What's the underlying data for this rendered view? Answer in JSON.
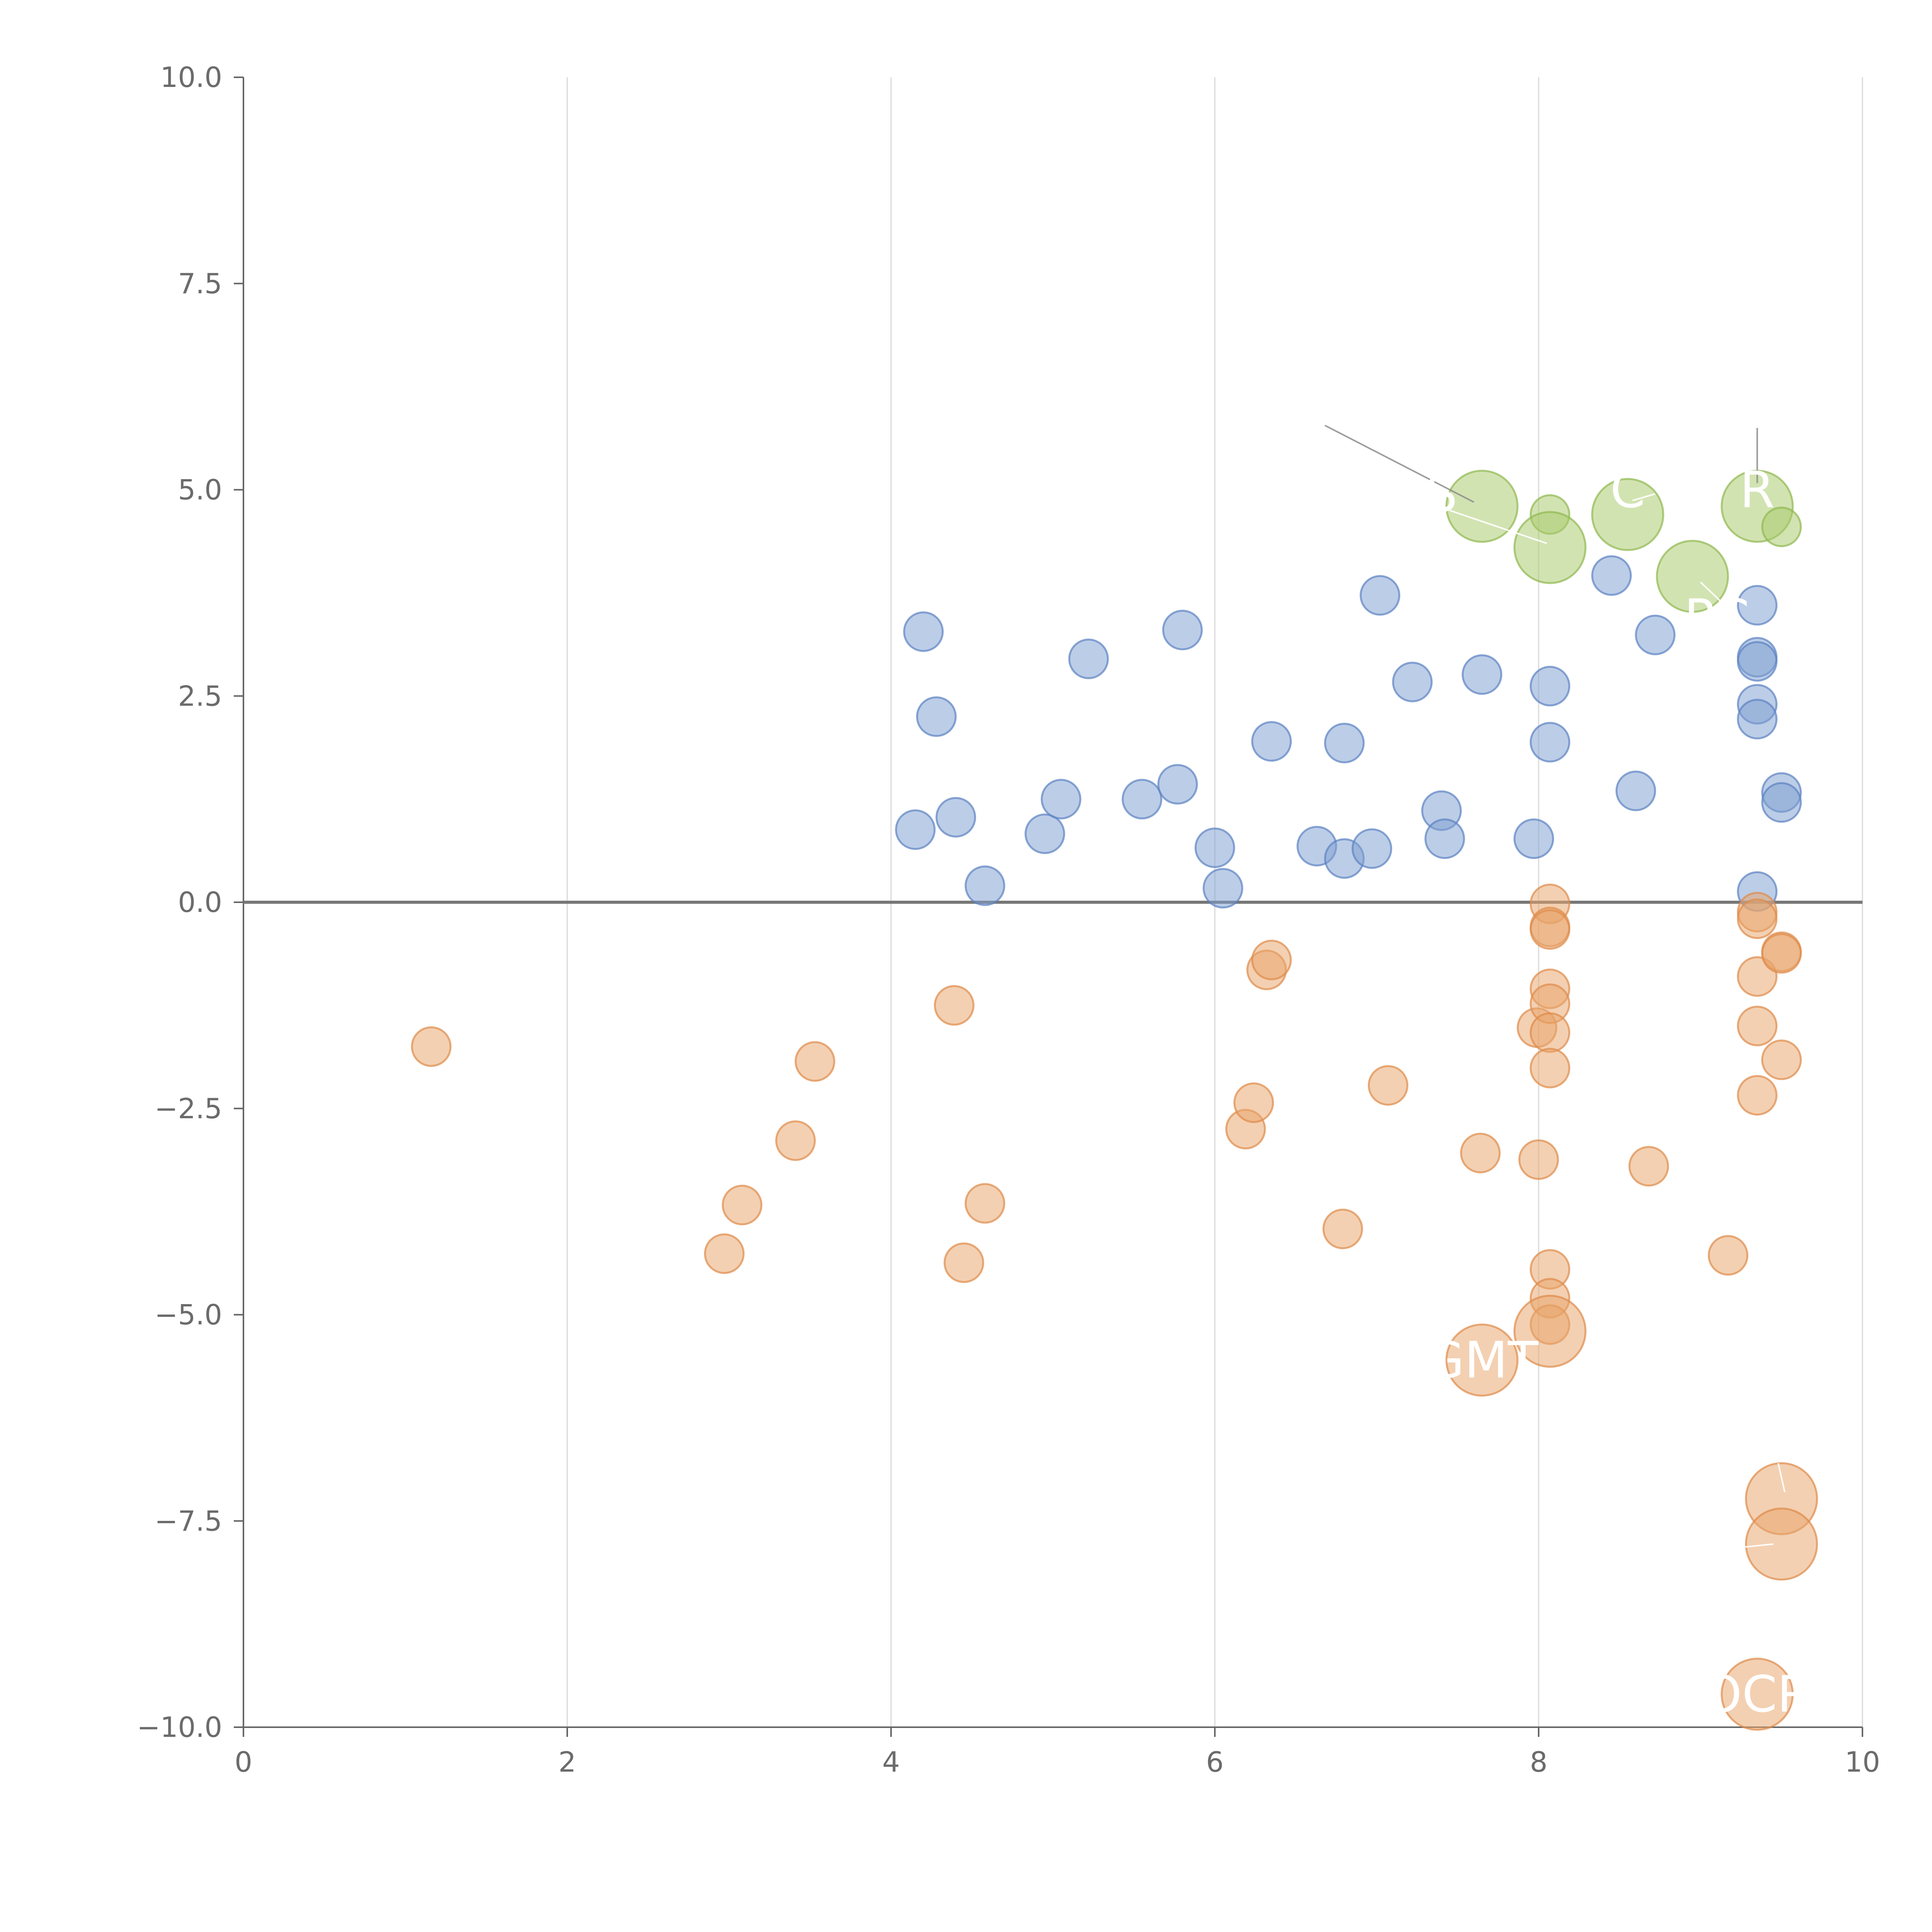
{
  "chart_data": {
    "type": "scatter",
    "title": "",
    "xlabel": "",
    "ylabel": "",
    "xlim": [
      0,
      10
    ],
    "ylim": [
      -10,
      10
    ],
    "x_ticks": [
      0,
      2,
      4,
      6,
      8,
      10
    ],
    "y_ticks": [
      10,
      7.5,
      5,
      2.5,
      0,
      -2.5,
      -5,
      -7.5,
      -10
    ],
    "x_tick_labels": [
      "0",
      "2",
      "4",
      "6",
      "8",
      "10"
    ],
    "y_tick_labels": [
      "10.0",
      "7.5",
      "5.0",
      "2.5",
      "0.0",
      "−2.5",
      "−5.0",
      "−7.5",
      "−10.0"
    ],
    "vertical_grid": true,
    "horizontal_grid": false,
    "reference_line_y": 0,
    "colors": {
      "green_fill": "#a9c96b",
      "green_stroke": "#8fb84e",
      "blue_fill": "#7f9fd1",
      "blue_stroke": "#5b82c2",
      "orange_fill": "#e8a46c",
      "orange_stroke": "#de8a48",
      "leader_dark": "#8c8c8c",
      "leader_light": "#ffffff"
    },
    "series": [
      {
        "name": "green",
        "color_key": "green",
        "points": [
          {
            "x": 7.65,
            "y": 4.8,
            "size": 3
          },
          {
            "x": 8.07,
            "y": 4.7,
            "size": 1
          },
          {
            "x": 8.07,
            "y": 4.3,
            "size": 3
          },
          {
            "x": 8.55,
            "y": 4.7,
            "size": 3
          },
          {
            "x": 8.95,
            "y": 3.95,
            "size": 3
          },
          {
            "x": 9.35,
            "y": 4.8,
            "size": 3
          },
          {
            "x": 9.5,
            "y": 4.55,
            "size": 1
          }
        ]
      },
      {
        "name": "blue",
        "color_key": "blue",
        "points": [
          {
            "x": 4.2,
            "y": 3.28,
            "size": 1
          },
          {
            "x": 4.28,
            "y": 2.25,
            "size": 1
          },
          {
            "x": 4.15,
            "y": 0.88,
            "size": 1
          },
          {
            "x": 4.4,
            "y": 1.03,
            "size": 1
          },
          {
            "x": 4.58,
            "y": 0.2,
            "size": 1
          },
          {
            "x": 4.95,
            "y": 0.83,
            "size": 1
          },
          {
            "x": 5.05,
            "y": 1.25,
            "size": 1
          },
          {
            "x": 5.22,
            "y": 2.95,
            "size": 1
          },
          {
            "x": 5.55,
            "y": 1.25,
            "size": 1
          },
          {
            "x": 5.77,
            "y": 1.43,
            "size": 1
          },
          {
            "x": 5.8,
            "y": 3.3,
            "size": 1
          },
          {
            "x": 6.0,
            "y": 0.66,
            "size": 1
          },
          {
            "x": 6.05,
            "y": 0.17,
            "size": 1
          },
          {
            "x": 6.35,
            "y": 1.95,
            "size": 1
          },
          {
            "x": 6.63,
            "y": 0.68,
            "size": 1
          },
          {
            "x": 6.8,
            "y": 1.93,
            "size": 1
          },
          {
            "x": 6.8,
            "y": 0.53,
            "size": 1
          },
          {
            "x": 6.97,
            "y": 0.65,
            "size": 1
          },
          {
            "x": 7.02,
            "y": 3.72,
            "size": 1
          },
          {
            "x": 7.22,
            "y": 2.67,
            "size": 1
          },
          {
            "x": 7.4,
            "y": 1.11,
            "size": 1
          },
          {
            "x": 7.42,
            "y": 0.77,
            "size": 1
          },
          {
            "x": 7.65,
            "y": 2.76,
            "size": 1
          },
          {
            "x": 7.97,
            "y": 0.77,
            "size": 1
          },
          {
            "x": 8.07,
            "y": 2.62,
            "size": 1
          },
          {
            "x": 8.07,
            "y": 1.94,
            "size": 1
          },
          {
            "x": 8.45,
            "y": 3.96,
            "size": 1
          },
          {
            "x": 8.6,
            "y": 1.35,
            "size": 1
          },
          {
            "x": 8.72,
            "y": 3.24,
            "size": 1
          },
          {
            "x": 9.35,
            "y": 3.6,
            "size": 1
          },
          {
            "x": 9.35,
            "y": 2.97,
            "size": 1
          },
          {
            "x": 9.35,
            "y": 2.92,
            "size": 1
          },
          {
            "x": 9.35,
            "y": 2.4,
            "size": 1
          },
          {
            "x": 9.35,
            "y": 2.22,
            "size": 1
          },
          {
            "x": 9.5,
            "y": 1.33,
            "size": 1
          },
          {
            "x": 9.5,
            "y": 1.21,
            "size": 1
          },
          {
            "x": 9.35,
            "y": 0.13,
            "size": 1
          }
        ]
      },
      {
        "name": "orange",
        "color_key": "orange",
        "points": [
          {
            "x": 1.16,
            "y": -1.75,
            "size": 1
          },
          {
            "x": 2.97,
            "y": -4.26,
            "size": 1
          },
          {
            "x": 3.08,
            "y": -3.67,
            "size": 1
          },
          {
            "x": 3.41,
            "y": -2.89,
            "size": 1
          },
          {
            "x": 3.53,
            "y": -1.93,
            "size": 1
          },
          {
            "x": 4.39,
            "y": -1.25,
            "size": 1
          },
          {
            "x": 4.45,
            "y": -4.37,
            "size": 1
          },
          {
            "x": 4.58,
            "y": -3.65,
            "size": 1
          },
          {
            "x": 6.19,
            "y": -2.75,
            "size": 1
          },
          {
            "x": 6.24,
            "y": -2.43,
            "size": 1
          },
          {
            "x": 6.32,
            "y": -0.82,
            "size": 1
          },
          {
            "x": 6.35,
            "y": -0.7,
            "size": 1
          },
          {
            "x": 6.79,
            "y": -3.96,
            "size": 1
          },
          {
            "x": 7.07,
            "y": -2.22,
            "size": 1
          },
          {
            "x": 7.64,
            "y": -3.04,
            "size": 1
          },
          {
            "x": 8.0,
            "y": -3.12,
            "size": 1
          },
          {
            "x": 7.99,
            "y": -1.52,
            "size": 1
          },
          {
            "x": 8.07,
            "y": -0.02,
            "size": 1
          },
          {
            "x": 8.07,
            "y": -0.3,
            "size": 1
          },
          {
            "x": 8.07,
            "y": -0.33,
            "size": 1
          },
          {
            "x": 8.07,
            "y": -1.05,
            "size": 1
          },
          {
            "x": 8.07,
            "y": -1.23,
            "size": 1
          },
          {
            "x": 8.07,
            "y": -1.58,
            "size": 1
          },
          {
            "x": 8.07,
            "y": -2.01,
            "size": 1
          },
          {
            "x": 8.07,
            "y": -4.45,
            "size": 1
          },
          {
            "x": 8.07,
            "y": -4.8,
            "size": 1
          },
          {
            "x": 8.07,
            "y": -5.12,
            "size": 1
          },
          {
            "x": 8.07,
            "y": -5.2,
            "size": 3
          },
          {
            "x": 7.65,
            "y": -5.55,
            "size": 3
          },
          {
            "x": 8.68,
            "y": -3.2,
            "size": 1
          },
          {
            "x": 9.17,
            "y": -4.28,
            "size": 1
          },
          {
            "x": 9.35,
            "y": -0.12,
            "size": 1
          },
          {
            "x": 9.35,
            "y": -0.2,
            "size": 1
          },
          {
            "x": 9.35,
            "y": -0.9,
            "size": 1
          },
          {
            "x": 9.35,
            "y": -1.5,
            "size": 1
          },
          {
            "x": 9.35,
            "y": -2.34,
            "size": 1
          },
          {
            "x": 9.5,
            "y": -0.6,
            "size": 1
          },
          {
            "x": 9.5,
            "y": -0.62,
            "size": 1
          },
          {
            "x": 9.5,
            "y": -1.91,
            "size": 1
          },
          {
            "x": 9.5,
            "y": -7.23,
            "size": 3
          },
          {
            "x": 9.5,
            "y": -7.78,
            "size": 3
          },
          {
            "x": 9.35,
            "y": -9.6,
            "size": 3
          }
        ]
      }
    ],
    "annotations": [
      {
        "text": "GMT",
        "x": 7.65,
        "y": -5.55
      },
      {
        "text": "OCR",
        "x": 9.35,
        "y": -9.6
      },
      {
        "text": "C",
        "x": 8.55,
        "y": 5.0
      },
      {
        "text": "R",
        "x": 9.35,
        "y": 5.0
      },
      {
        "text": "S",
        "x": 7.4,
        "y": 4.95
      },
      {
        "text": "PC",
        "x": 9.1,
        "y": 3.45
      }
    ],
    "leader_lines": [
      {
        "x1": 6.68,
        "y1": 5.78,
        "x2": 7.6,
        "y2": 4.85,
        "tone": "dark"
      },
      {
        "x1": 9.35,
        "y1": 5.75,
        "x2": 9.35,
        "y2": 5.08,
        "tone": "dark"
      },
      {
        "x1": 7.45,
        "y1": 4.75,
        "x2": 8.05,
        "y2": 4.35,
        "tone": "light"
      },
      {
        "x1": 8.58,
        "y1": 4.87,
        "x2": 8.72,
        "y2": 4.95,
        "tone": "light"
      },
      {
        "x1": 9.0,
        "y1": 3.88,
        "x2": 9.15,
        "y2": 3.6,
        "tone": "light"
      },
      {
        "x1": 9.48,
        "y1": -6.8,
        "x2": 9.52,
        "y2": -7.15,
        "tone": "light"
      },
      {
        "x1": 9.25,
        "y1": -7.82,
        "x2": 9.45,
        "y2": -7.78,
        "tone": "light"
      }
    ]
  }
}
